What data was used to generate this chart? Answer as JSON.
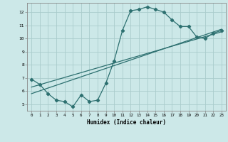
{
  "xlabel": "Humidex (Indice chaleur)",
  "xlim": [
    -0.5,
    23.5
  ],
  "ylim": [
    4.5,
    12.7
  ],
  "xticks": [
    0,
    1,
    2,
    3,
    4,
    5,
    6,
    7,
    8,
    9,
    10,
    11,
    12,
    13,
    14,
    15,
    16,
    17,
    18,
    19,
    20,
    21,
    22,
    23
  ],
  "yticks": [
    5,
    6,
    7,
    8,
    9,
    10,
    11,
    12
  ],
  "background_color": "#cce8e8",
  "grid_color": "#aacccc",
  "line_color": "#2d7070",
  "line1_x": [
    0,
    1,
    2,
    3,
    4,
    5,
    6,
    7,
    8,
    9,
    10,
    11,
    12,
    13,
    14,
    15,
    16,
    17,
    18,
    19,
    20,
    21,
    22,
    23
  ],
  "line1_y": [
    6.9,
    6.5,
    5.8,
    5.3,
    5.2,
    4.8,
    5.7,
    5.2,
    5.3,
    6.6,
    8.3,
    10.6,
    12.1,
    12.2,
    12.4,
    12.2,
    12.0,
    11.4,
    10.9,
    10.9,
    10.1,
    10.0,
    10.4,
    10.6
  ],
  "line2_x": [
    0,
    23
  ],
  "line2_y": [
    6.3,
    10.5
  ],
  "line3_x": [
    0,
    23
  ],
  "line3_y": [
    5.8,
    10.7
  ]
}
